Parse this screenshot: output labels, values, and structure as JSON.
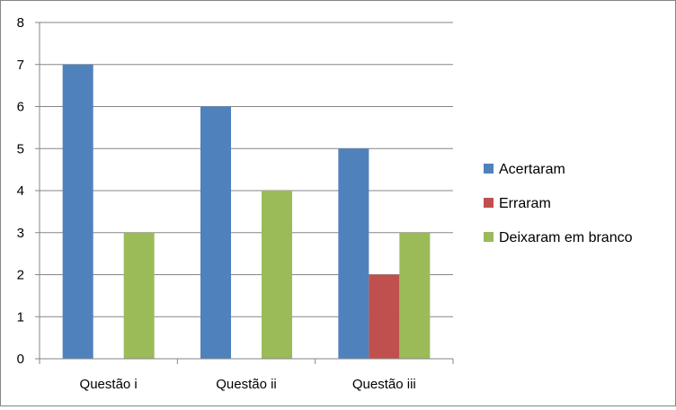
{
  "chart_data": {
    "type": "bar",
    "title": "",
    "xlabel": "",
    "ylabel": "",
    "categories": [
      "Questão i",
      "Questão ii",
      "Questão iii"
    ],
    "series": [
      {
        "name": "Acertaram",
        "values": [
          7,
          6,
          5
        ],
        "color": "#4f81bd"
      },
      {
        "name": "Erraram",
        "values": [
          0,
          0,
          2
        ],
        "color": "#c0504d"
      },
      {
        "name": "Deixaram em branco",
        "values": [
          3,
          4,
          3
        ],
        "color": "#9bbb59"
      }
    ],
    "ylim": [
      0,
      8
    ],
    "yticks": [
      "0",
      "1",
      "2",
      "3",
      "4",
      "5",
      "6",
      "7",
      "8"
    ],
    "grid": true,
    "legend_position": "right"
  }
}
